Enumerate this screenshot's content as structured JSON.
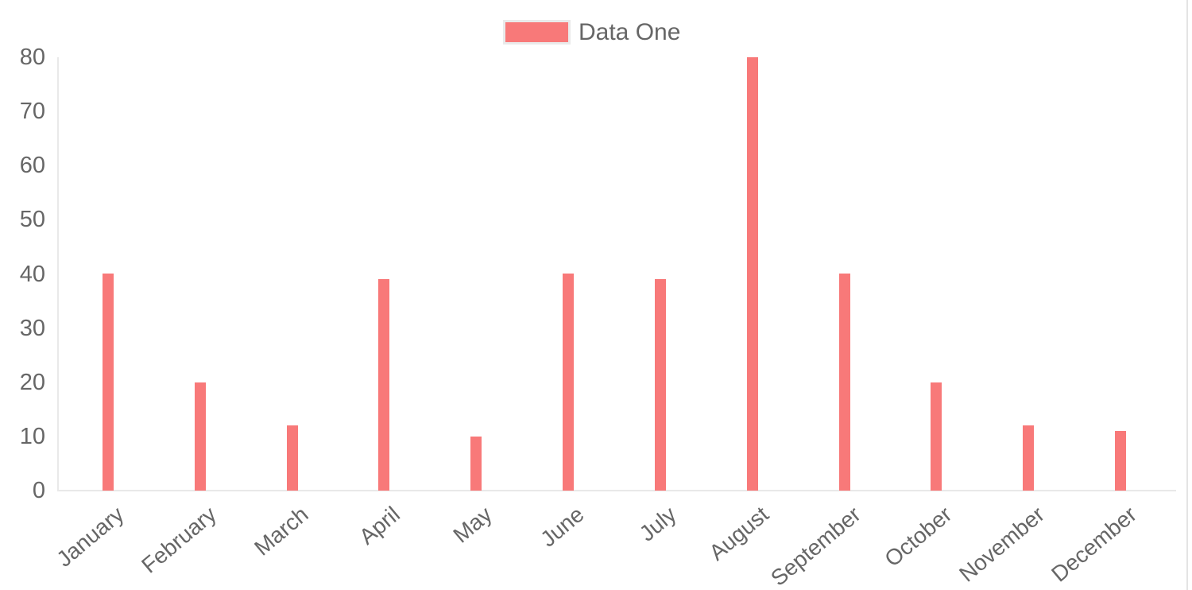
{
  "chart_data": {
    "type": "bar",
    "title": "",
    "categories": [
      "January",
      "February",
      "March",
      "April",
      "May",
      "June",
      "July",
      "August",
      "September",
      "October",
      "November",
      "December"
    ],
    "series": [
      {
        "name": "Data One",
        "color": "#f87979",
        "values": [
          40,
          20,
          12,
          39,
          10,
          40,
          39,
          80,
          40,
          20,
          12,
          11
        ]
      }
    ],
    "ylim": [
      0,
      80
    ],
    "yticks": [
      80,
      70,
      60,
      50,
      40,
      30,
      20,
      10,
      0
    ],
    "xlabel": "",
    "ylabel": "",
    "legend_position": "top-center",
    "grid": false,
    "x_label_rotation_deg": -40,
    "colors": {
      "bar_fill": "#f87979",
      "axis_line": "#e9e9e9",
      "tick_text": "#666666",
      "legend_swatch_border": "#eaeaea",
      "page_right_border": "#e4e4e4"
    }
  }
}
